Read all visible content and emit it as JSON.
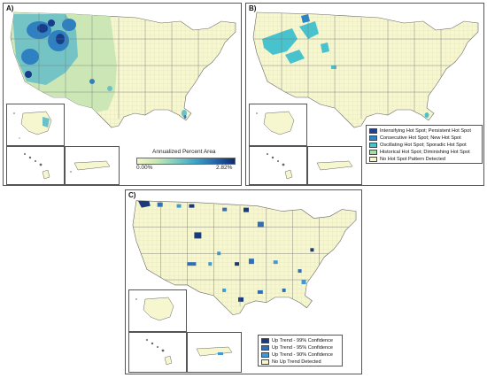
{
  "panels": {
    "a": {
      "label": "A)",
      "legend_title": "Annualized Percent Area",
      "min_label": "0.00%",
      "max_label": "2.82%"
    },
    "b": {
      "label": "B)",
      "legend": [
        {
          "label": "Intensifying Hot Spot; Persistent Hot Spot",
          "color": "#1f3f8f"
        },
        {
          "label": "Consecutive Hot Spot; New Hot Spot",
          "color": "#2a86c6"
        },
        {
          "label": "Oscillating Hot Spot; Sporadic Hot Spot",
          "color": "#48c2cc"
        },
        {
          "label": "Historical Hot Spot; Diminishing Hot Spot",
          "color": "#a8dba8"
        },
        {
          "label": "No Hot Spot Pattern Detected",
          "color": "#f6f6cf"
        }
      ]
    },
    "c": {
      "label": "C)",
      "legend": [
        {
          "label": "Up Trend - 99% Confidence",
          "color": "#1a3a7a"
        },
        {
          "label": "Up Trend - 95% Confidence",
          "color": "#2f6fb8"
        },
        {
          "label": "Up Trend - 90% Confidence",
          "color": "#3f9ad6"
        },
        {
          "label": "No Up Trend Detected",
          "color": "#f6f6cf"
        }
      ]
    }
  },
  "colors": {
    "land": "#f6f6cf",
    "border": "#8a8a8a",
    "light": "#c9e6b4",
    "mid": "#6cc0c7",
    "strong": "#2f80c0",
    "dark": "#173c8a"
  }
}
